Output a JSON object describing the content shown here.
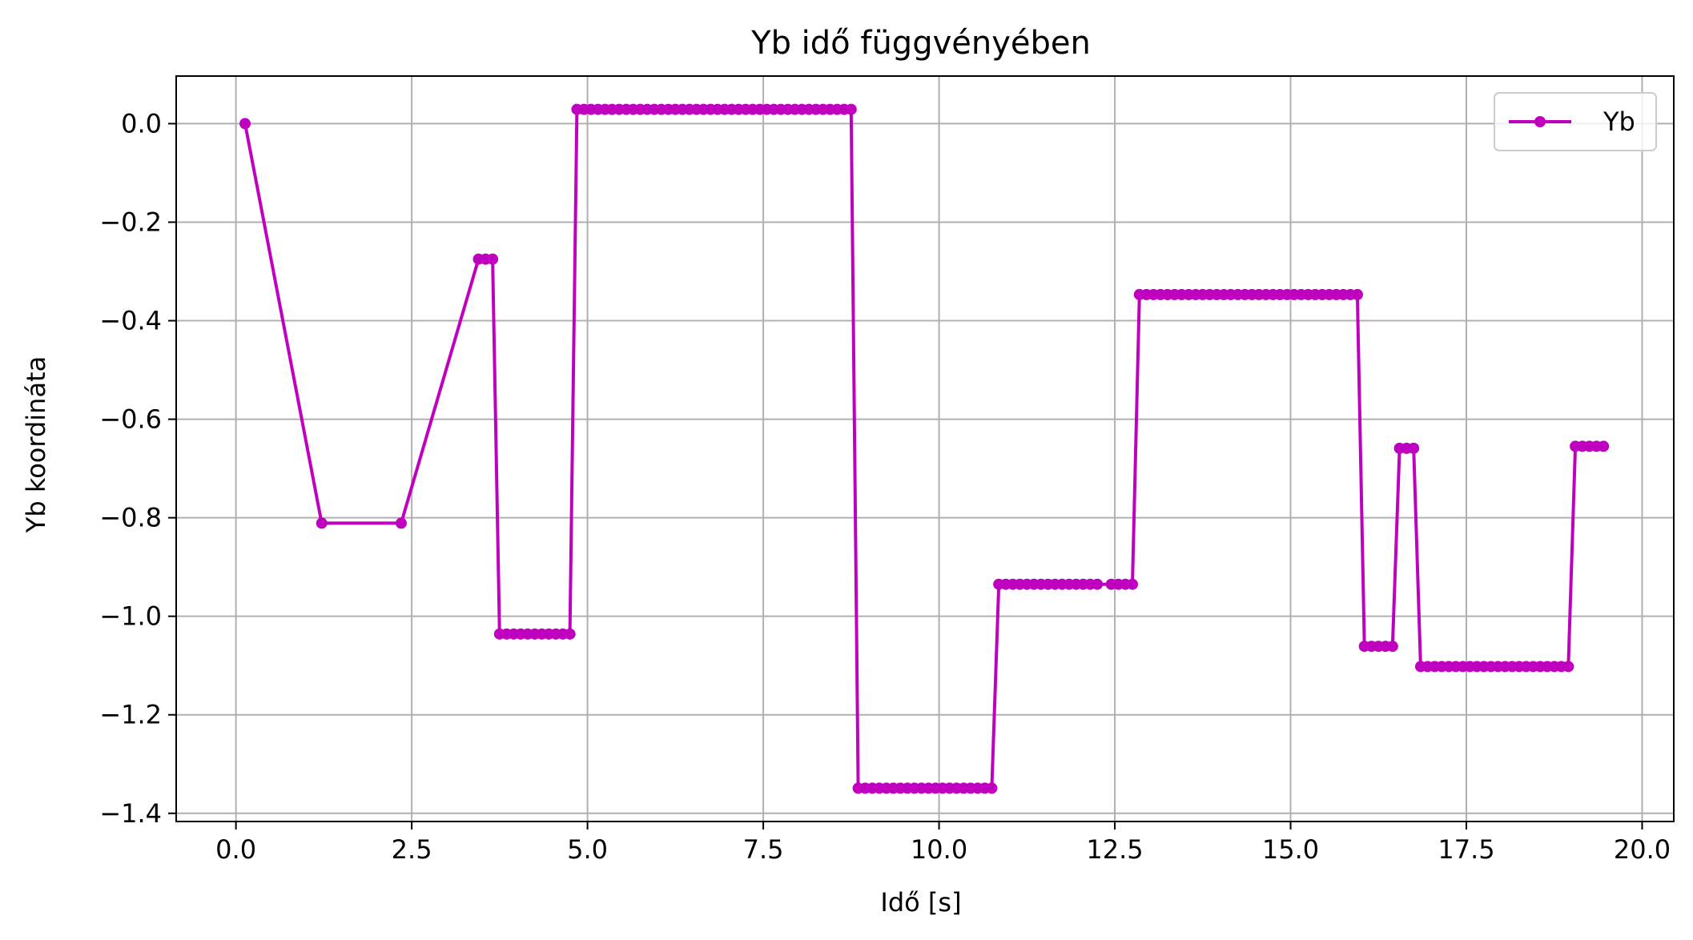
{
  "chart_data": {
    "type": "line",
    "title": "Yb idő függvényében",
    "xlabel": "Idő [s]",
    "ylabel": "Yb koordináta",
    "xlim": [
      -0.85,
      20.45
    ],
    "ylim": [
      -1.4166,
      0.0966
    ],
    "xticks": [
      0.0,
      2.5,
      5.0,
      7.5,
      10.0,
      12.5,
      15.0,
      17.5,
      20.0
    ],
    "xtick_labels": [
      "0.0",
      "2.5",
      "5.0",
      "7.5",
      "10.0",
      "12.5",
      "15.0",
      "17.5",
      "20.0"
    ],
    "yticks": [
      0.0,
      -0.2,
      -0.4,
      -0.6,
      -0.8,
      -1.0,
      -1.2,
      -1.4
    ],
    "ytick_labels": [
      "0.0",
      "−0.2",
      "−0.4",
      "−0.6",
      "−0.8",
      "−1.0",
      "−1.2",
      "−1.4"
    ],
    "grid": true,
    "legend_position": "top-right",
    "series": [
      {
        "name": "Yb",
        "color": "#bf00bf",
        "marker": "circle",
        "segments": [
          {
            "x": [
              0.13
            ],
            "y": 0.0
          },
          {
            "x": [
              1.22
            ],
            "y": -0.811
          },
          {
            "x": [
              2.35
            ],
            "y": -0.811
          },
          {
            "x": [
              3.45,
              3.55,
              3.65
            ],
            "y": -0.275
          },
          {
            "x": [
              3.75,
              3.85,
              3.95,
              4.05,
              4.15,
              4.25,
              4.35,
              4.45,
              4.55,
              4.65,
              4.75
            ],
            "y": -1.036
          },
          {
            "x": [
              4.85,
              4.95,
              5.05,
              5.15,
              5.25,
              5.35,
              5.45,
              5.55,
              5.65,
              5.75,
              5.85,
              5.95,
              6.05,
              6.15,
              6.25,
              6.35,
              6.45,
              6.55,
              6.65,
              6.75,
              6.85,
              6.95,
              7.05,
              7.15,
              7.25,
              7.35,
              7.45,
              7.55,
              7.65,
              7.75,
              7.85,
              7.95,
              8.05,
              8.15,
              8.25,
              8.35,
              8.45,
              8.55,
              8.65,
              8.75
            ],
            "y": 0.029
          },
          {
            "x": [
              8.85,
              8.95,
              9.05,
              9.15,
              9.25,
              9.35,
              9.45,
              9.55,
              9.65,
              9.75,
              9.85,
              9.95,
              10.05,
              10.15,
              10.25,
              10.35,
              10.45,
              10.55,
              10.65,
              10.75
            ],
            "y": -1.349
          },
          {
            "x": [
              10.85,
              10.95,
              11.05,
              11.15,
              11.25,
              11.35,
              11.45,
              11.55,
              11.65,
              11.75,
              11.85,
              11.95,
              12.05,
              12.15,
              12.25,
              12.45,
              12.55,
              12.65,
              12.75
            ],
            "y": -0.935
          },
          {
            "x": [
              12.85,
              12.95,
              13.05,
              13.15,
              13.25,
              13.35,
              13.45,
              13.55,
              13.65,
              13.75,
              13.85,
              13.95,
              14.05,
              14.15,
              14.25,
              14.35,
              14.45,
              14.55,
              14.65,
              14.75,
              14.85,
              14.95,
              15.05,
              15.15,
              15.25,
              15.35,
              15.45,
              15.55,
              15.65,
              15.75,
              15.85,
              15.95
            ],
            "y": -0.347
          },
          {
            "x": [
              16.05,
              16.15,
              16.25,
              16.35,
              16.45
            ],
            "y": -1.061
          },
          {
            "x": [
              16.55,
              16.65,
              16.75
            ],
            "y": -0.659
          },
          {
            "x": [
              16.85,
              16.95,
              17.05,
              17.15,
              17.25,
              17.35,
              17.45,
              17.55,
              17.65,
              17.75,
              17.85,
              17.95,
              18.05,
              18.15,
              18.25,
              18.35,
              18.45,
              18.55,
              18.65,
              18.75,
              18.85,
              18.95
            ],
            "y": -1.102
          },
          {
            "x": [
              19.05,
              19.15,
              19.25,
              19.35,
              19.45
            ],
            "y": -0.655
          }
        ]
      }
    ]
  }
}
